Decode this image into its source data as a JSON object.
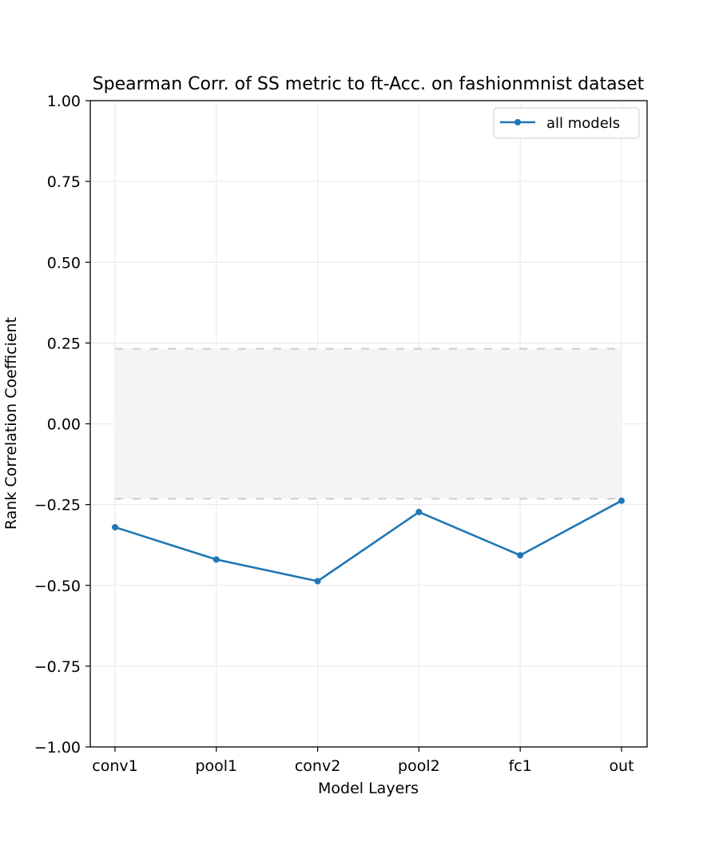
{
  "chart_data": {
    "type": "line",
    "title": "Spearman Corr. of SS metric to ft-Acc. on fashionmnist dataset",
    "xlabel": "Model Layers",
    "ylabel": "Rank Correlation Coefficient",
    "categories": [
      "conv1",
      "pool1",
      "conv2",
      "pool2",
      "fc1",
      "out"
    ],
    "series": [
      {
        "name": "all models",
        "color": "#1f77b4",
        "values": [
          -0.32,
          -0.42,
          -0.487,
          -0.273,
          -0.407,
          -0.238
        ]
      }
    ],
    "band": {
      "lower": -0.232,
      "upper": 0.232,
      "fill": "#f4f4f4",
      "edge_color": "#cccccc"
    },
    "ylim": [
      -1.0,
      1.0
    ],
    "yticks": [
      1.0,
      0.75,
      0.5,
      0.25,
      0.0,
      -0.25,
      -0.5,
      -0.75,
      -1.0
    ],
    "ytick_labels": [
      "1.00",
      "0.75",
      "0.50",
      "0.25",
      "0.00",
      "−0.25",
      "−0.50",
      "−0.75",
      "−1.00"
    ],
    "grid": true,
    "legend_position": "top-right"
  }
}
